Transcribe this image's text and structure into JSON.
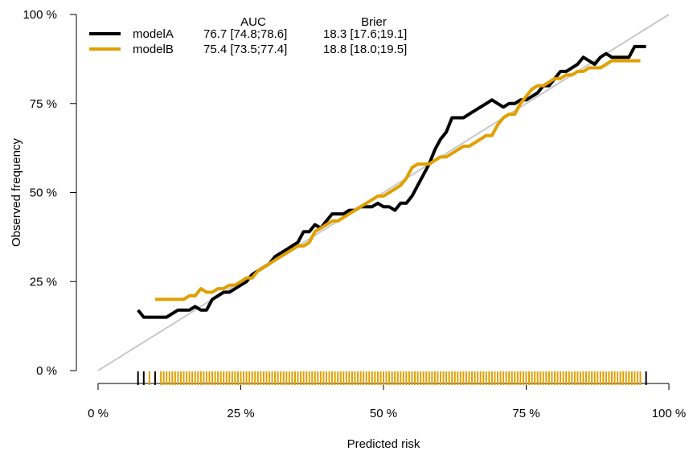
{
  "chart_data": {
    "type": "line",
    "xlabel": "Predicted risk",
    "ylabel": "Observed frequency",
    "xlim": [
      0,
      100
    ],
    "ylim": [
      0,
      100
    ],
    "x_ticks": [
      0,
      25,
      50,
      75,
      100
    ],
    "y_ticks": [
      0,
      25,
      50,
      75,
      100
    ],
    "x_tick_labels": [
      "0 %",
      "25 %",
      "50 %",
      "75 %",
      "100 %"
    ],
    "y_tick_labels": [
      "0 %",
      "25 %",
      "50 %",
      "75 %",
      "100 %"
    ],
    "grid": false,
    "legend_position": "top-left",
    "reference_line": {
      "x": [
        0,
        100
      ],
      "y": [
        0,
        100
      ],
      "color": "#c8c8c8"
    },
    "legend": {
      "headers": [
        "AUC",
        "Brier"
      ],
      "rows": [
        {
          "name": "modelA",
          "auc": "76.7 [74.8;78.6]",
          "brier": "18.3 [17.6;19.1]",
          "color": "#000000"
        },
        {
          "name": "modelB",
          "auc": "75.4 [73.5;77.4]",
          "brier": "18.8 [18.0;19.5]",
          "color": "#e0a000"
        }
      ]
    },
    "series": [
      {
        "name": "modelA",
        "color": "#000000",
        "x": [
          7,
          8,
          9,
          10,
          11,
          12,
          13,
          14,
          15,
          16,
          17,
          18,
          19,
          20,
          21,
          22,
          23,
          24,
          25,
          26,
          27,
          28,
          29,
          30,
          31,
          32,
          33,
          34,
          35,
          36,
          37,
          38,
          39,
          40,
          41,
          42,
          43,
          44,
          45,
          46,
          47,
          48,
          49,
          50,
          51,
          52,
          53,
          54,
          55,
          56,
          57,
          58,
          59,
          60,
          61,
          62,
          63,
          64,
          65,
          66,
          67,
          68,
          69,
          70,
          71,
          72,
          73,
          74,
          75,
          76,
          77,
          78,
          79,
          80,
          81,
          82,
          83,
          84,
          85,
          86,
          87,
          88,
          89,
          90,
          91,
          92,
          93,
          94,
          95,
          96
        ],
        "y": [
          17,
          15,
          15,
          15,
          15,
          15,
          16,
          17,
          17,
          17,
          18,
          17,
          17,
          20,
          21,
          22,
          22,
          23,
          24,
          25,
          27,
          28,
          29,
          30,
          32,
          33,
          34,
          35,
          36,
          39,
          39,
          41,
          40,
          42,
          44,
          44,
          44,
          45,
          45,
          46,
          46,
          46,
          47,
          46,
          46,
          45,
          47,
          47,
          49,
          52,
          55,
          58,
          62,
          65,
          67,
          71,
          71,
          71,
          72,
          73,
          74,
          75,
          76,
          75,
          74,
          75,
          75,
          76,
          76,
          77,
          78,
          80,
          80,
          82,
          84,
          84,
          85,
          86,
          88,
          87,
          86,
          88,
          89,
          88,
          88,
          88,
          88,
          91,
          91,
          91
        ]
      },
      {
        "name": "modelB",
        "color": "#e0a000",
        "x": [
          10,
          11,
          12,
          13,
          14,
          15,
          16,
          17,
          18,
          19,
          20,
          21,
          22,
          23,
          24,
          25,
          26,
          27,
          28,
          29,
          30,
          31,
          32,
          33,
          34,
          35,
          36,
          37,
          38,
          39,
          40,
          41,
          42,
          43,
          44,
          45,
          46,
          47,
          48,
          49,
          50,
          51,
          52,
          53,
          54,
          55,
          56,
          57,
          58,
          59,
          60,
          61,
          62,
          63,
          64,
          65,
          66,
          67,
          68,
          69,
          70,
          71,
          72,
          73,
          74,
          75,
          76,
          77,
          78,
          79,
          80,
          81,
          82,
          83,
          84,
          85,
          86,
          87,
          88,
          89,
          90,
          91,
          92,
          93,
          94,
          95
        ],
        "y": [
          20,
          20,
          20,
          20,
          20,
          20,
          21,
          21,
          23,
          22,
          22,
          23,
          23,
          24,
          24,
          25,
          26,
          26,
          28,
          29,
          30,
          31,
          32,
          33,
          34,
          35,
          35,
          36,
          39,
          40,
          41,
          42,
          42,
          43,
          44,
          45,
          46,
          47,
          48,
          49,
          49,
          50,
          51,
          52,
          54,
          57,
          58,
          58,
          58,
          59,
          60,
          60,
          61,
          62,
          63,
          63,
          64,
          65,
          66,
          66,
          69,
          71,
          72,
          72,
          75,
          77,
          79,
          80,
          80,
          81,
          82,
          82,
          83,
          83,
          84,
          84,
          85,
          85,
          85,
          86,
          87,
          87,
          87,
          87,
          87,
          87
        ]
      }
    ],
    "rug": {
      "modelA": [
        7,
        8,
        10,
        96
      ],
      "modelB": [
        9,
        10,
        11,
        11.5,
        12,
        12.5,
        13,
        13.5,
        14,
        14.5,
        15,
        15.5,
        16,
        16.5,
        17,
        17.5,
        18,
        18.5,
        19,
        19.5,
        20,
        20.5,
        21,
        21.5,
        22,
        22.5,
        23,
        23.5,
        24,
        24.5,
        25,
        25.5,
        26,
        26.5,
        27,
        27.5,
        28,
        28.5,
        29,
        29.5,
        30,
        30.5,
        31,
        31.5,
        32,
        32.5,
        33,
        33.5,
        34,
        34.5,
        35,
        35.5,
        36,
        36.5,
        37,
        37.5,
        38,
        38.5,
        39,
        39.5,
        40,
        40.5,
        41,
        41.5,
        42,
        42.5,
        43,
        43.5,
        44,
        44.5,
        45,
        45.5,
        46,
        46.5,
        47,
        47.5,
        48,
        48.5,
        49,
        49.5,
        50,
        50.5,
        51,
        51.5,
        52,
        52.5,
        53,
        53.5,
        54,
        54.5,
        55,
        55.5,
        56,
        56.5,
        57,
        57.5,
        58,
        58.5,
        59,
        59.5,
        60,
        60.5,
        61,
        61.5,
        62,
        62.5,
        63,
        63.5,
        64,
        64.5,
        65,
        65.5,
        66,
        66.5,
        67,
        67.5,
        68,
        68.5,
        69,
        69.5,
        70,
        70.5,
        71,
        71.5,
        72,
        72.5,
        73,
        73.5,
        74,
        74.5,
        75,
        75.5,
        76,
        76.5,
        77,
        77.5,
        78,
        78.5,
        79,
        79.5,
        80,
        80.5,
        81,
        81.5,
        82,
        82.5,
        83,
        83.5,
        84,
        84.5,
        85,
        85.5,
        86,
        86.5,
        87,
        87.5,
        88,
        88.5,
        89,
        89.5,
        90,
        90.5,
        91,
        91.5,
        92,
        92.5,
        93,
        93.5,
        94,
        94.5,
        95
      ]
    }
  }
}
